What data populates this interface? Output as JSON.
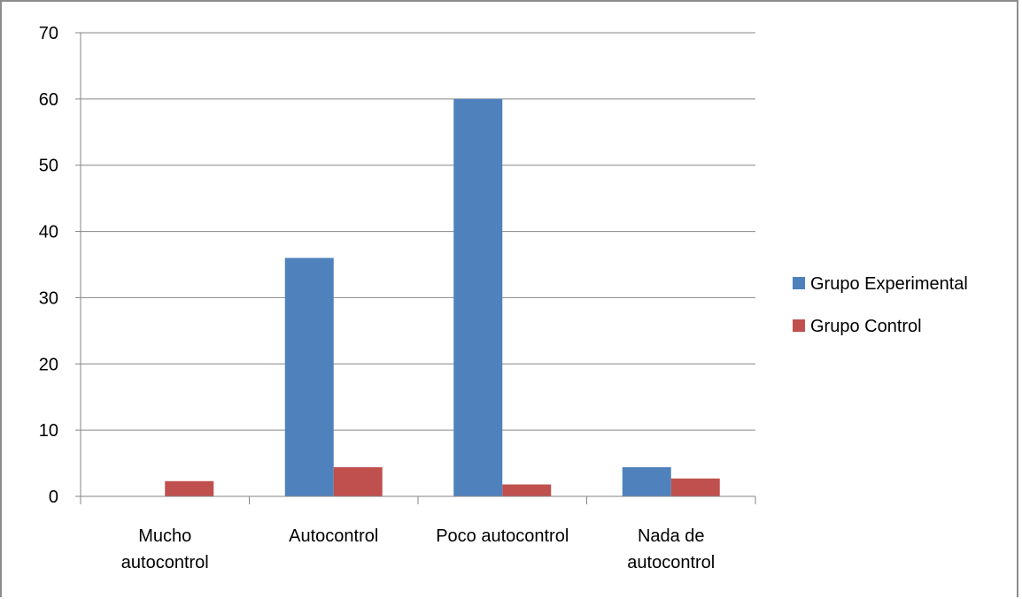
{
  "chart_data": {
    "type": "bar",
    "categories": [
      [
        "Mucho",
        "autocontrol"
      ],
      [
        "Autocontrol"
      ],
      [
        "Poco autocontrol"
      ],
      [
        "Nada de",
        "autocontrol"
      ]
    ],
    "series": [
      {
        "name": "Grupo Experimental",
        "color": "#4f81bd",
        "values": [
          0,
          36,
          60,
          4.4
        ]
      },
      {
        "name": "Grupo Control",
        "color": "#c0504d",
        "values": [
          2.3,
          4.4,
          1.8,
          2.7
        ]
      }
    ],
    "ylim": [
      0,
      70
    ],
    "yticks": [
      "0",
      "10",
      "20",
      "30",
      "40",
      "50",
      "60",
      "70"
    ],
    "grid": true,
    "legend_position": "right"
  }
}
